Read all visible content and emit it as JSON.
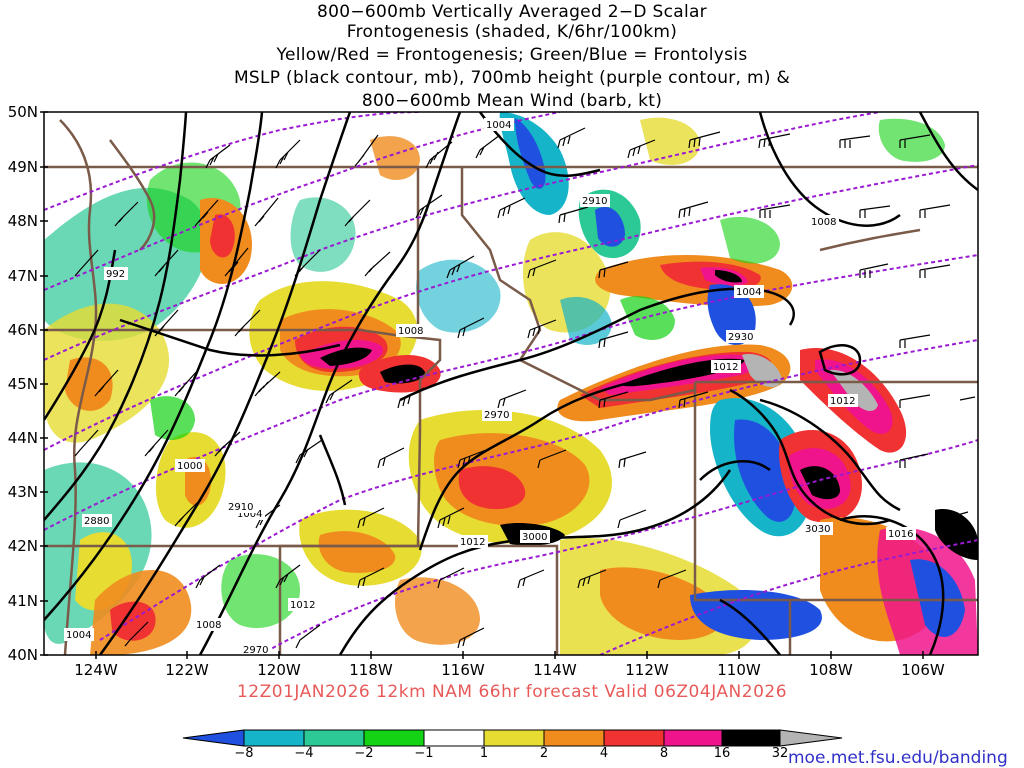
{
  "title_lines": [
    "800−600mb Vertically Averaged 2−D Scalar",
    "Frontogenesis (shaded, K/6hr/100km)",
    "Yellow/Red = Frontogenesis;  Green/Blue = Frontolysis",
    "MSLP (black contour, mb), 700mb height (purple contour, m) &",
    "800−600mb Mean Wind (barb, kt)"
  ],
  "lat_labels": [
    "50N",
    "49N",
    "48N",
    "47N",
    "46N",
    "45N",
    "44N",
    "43N",
    "42N",
    "41N",
    "40N"
  ],
  "lon_labels": [
    "124W",
    "122W",
    "120W",
    "118W",
    "116W",
    "114W",
    "112W",
    "110W",
    "108W",
    "106W"
  ],
  "footer": "12Z01JAN2026 12km NAM 66hr forecast Valid 06Z04JAN2026",
  "colorbar": {
    "labels": [
      "−8",
      "−4",
      "−2",
      "−1",
      "1",
      "2",
      "4",
      "8",
      "16",
      "32"
    ],
    "colors": [
      "#2050e0",
      "#16b4c8",
      "#2cc896",
      "#14d214",
      "#ffffff",
      "#e6dc32",
      "#f08c1e",
      "#f03232",
      "#f0148c",
      "#000000",
      "#b4b4b4"
    ]
  },
  "contour_labels": {
    "mslp": [
      "1004",
      "1008",
      "1008",
      "1012",
      "1012",
      "992",
      "1004",
      "1000",
      "1004",
      "1012",
      "1008",
      "1004",
      "1012",
      "1016"
    ],
    "height": [
      "2910",
      "2930",
      "2970",
      "2880",
      "2910",
      "3000",
      "3030",
      "2970"
    ]
  },
  "credit": "moe.met.fsu.edu/banding"
}
